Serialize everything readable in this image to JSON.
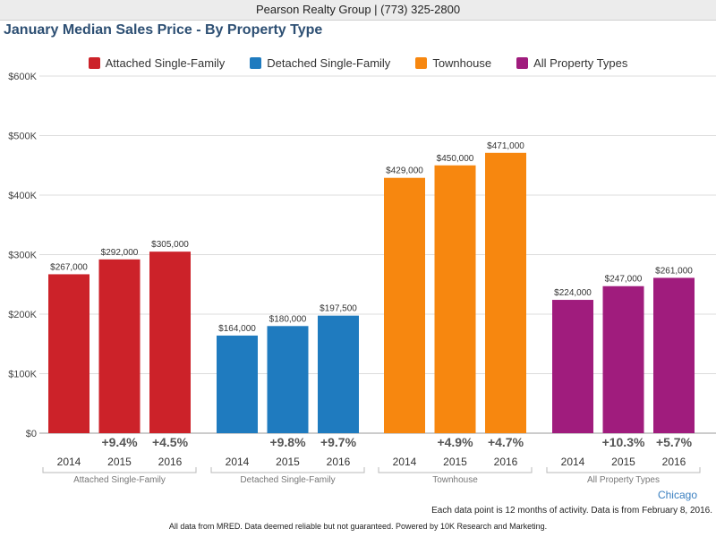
{
  "header": {
    "text": "Pearson Realty Group | (773) 325-2800"
  },
  "title": "January Median Sales Price - By Property Type",
  "region": "Chicago",
  "footnotes": {
    "line1": "Each data point is 12 months of activity. Data is from February 8, 2016.",
    "line2": "All data from MRED. Data deemed reliable but not guaranteed. Powered by 10K Research and Marketing."
  },
  "chart_data": {
    "type": "bar",
    "title": "January Median Sales Price - By Property Type",
    "xlabel": "",
    "ylabel": "",
    "ylim": [
      0,
      600000
    ],
    "yticks": [
      "$0",
      "$100K",
      "$200K",
      "$300K",
      "$400K",
      "$500K",
      "$600K"
    ],
    "ytick_values": [
      0,
      100000,
      200000,
      300000,
      400000,
      500000,
      600000
    ],
    "grid": true,
    "legend_position": "top-center",
    "categories": [
      "2014",
      "2015",
      "2016"
    ],
    "series": [
      {
        "name": "Attached Single-Family",
        "color": "#cc2229",
        "values": [
          267000,
          292000,
          305000
        ],
        "value_labels": [
          "$267,000",
          "$292,000",
          "$305,000"
        ],
        "changes": [
          "",
          "+9.4%",
          "+4.5%"
        ]
      },
      {
        "name": "Detached Single-Family",
        "color": "#1f7bbf",
        "values": [
          164000,
          180000,
          197500
        ],
        "value_labels": [
          "$164,000",
          "$180,000",
          "$197,500"
        ],
        "changes": [
          "",
          "+9.8%",
          "+9.7%"
        ]
      },
      {
        "name": "Townhouse",
        "color": "#f7870f",
        "values": [
          429000,
          450000,
          471000
        ],
        "value_labels": [
          "$429,000",
          "$450,000",
          "$471,000"
        ],
        "changes": [
          "",
          "+4.9%",
          "+4.7%"
        ]
      },
      {
        "name": "All Property Types",
        "color": "#a01c7d",
        "values": [
          224000,
          247000,
          261000
        ],
        "value_labels": [
          "$224,000",
          "$247,000",
          "$261,000"
        ],
        "changes": [
          "",
          "+10.3%",
          "+5.7%"
        ]
      }
    ]
  }
}
